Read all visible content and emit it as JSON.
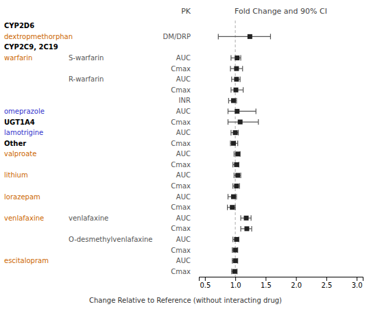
{
  "chart_data": {
    "type": "forest",
    "orientation": "horizontal",
    "title": "Fold Change and 90% CI",
    "xlabel": "Change Relative to Reference (without interacting drug)",
    "xlim": [
      0.4,
      3.1
    ],
    "xticks": [
      0.5,
      {
        "value": 1.0,
        "label": "1.0"
      },
      1.5,
      {
        "value": 2.0,
        "label": "2.0"
      },
      2.5,
      {
        "value": 3.0,
        "label": "3.0"
      }
    ],
    "grid": false,
    "annotations": [
      {
        "type": "text",
        "text": "PK"
      },
      {
        "type": "vline",
        "x": 1.0,
        "line_style": "dashed",
        "color": "#aaaaaa"
      }
    ],
    "categories": [
      "CYP2D6",
      "dextropmethorphan",
      "CYP2C9, 2C19",
      "warfarin",
      null,
      null,
      null,
      null,
      "omeprazole",
      "UGT1A4",
      "lamotrigine",
      "Other",
      "valproate",
      null,
      "lithium",
      null,
      "lorazepam",
      null,
      "venlafaxine",
      null,
      null,
      null,
      "escitalopram",
      null
    ],
    "bold": [
      true,
      false,
      true,
      false,
      false,
      false,
      false,
      false,
      false,
      true,
      false,
      true,
      false,
      false,
      false,
      false,
      false,
      false,
      false,
      false,
      false,
      false,
      false,
      false
    ],
    "label_colors": [
      "#000000",
      "#cc6600",
      "#000000",
      "#cc6600",
      null,
      null,
      null,
      null,
      "#3333cc",
      "#000000",
      "#3333cc",
      "#000000",
      "#cc6600",
      null,
      "#cc6600",
      null,
      "#cc6600",
      null,
      "#cc6600",
      null,
      null,
      null,
      "#cc6600",
      null
    ],
    "sublabels": [
      null,
      null,
      null,
      "S-warfarin",
      null,
      "R-warfarin",
      null,
      null,
      null,
      null,
      null,
      null,
      null,
      null,
      null,
      null,
      null,
      null,
      "venlafaxine",
      null,
      "O-desmethylvenlafaxine",
      null,
      null,
      null
    ],
    "pk_labels": [
      null,
      "DM/DRP",
      null,
      "AUC",
      "Cmax",
      "AUC",
      "Cmax",
      "INR",
      "AUC",
      "Cmax",
      "AUC",
      "Cmax",
      "AUC",
      "Cmax",
      "AUC",
      "Cmax",
      "AUC",
      "Cmax",
      "AUC",
      "Cmax",
      "AUC",
      "Cmax",
      "AUC",
      "Cmax"
    ],
    "values": [
      null,
      1.24,
      null,
      1.03,
      1.02,
      1.02,
      1.01,
      0.97,
      1.03,
      1.08,
      1.0,
      0.97,
      1.04,
      1.02,
      1.04,
      1.02,
      0.97,
      0.95,
      1.18,
      1.19,
      1.02,
      1.0,
      1.0,
      0.99
    ],
    "ci_lo": [
      null,
      0.72,
      null,
      0.93,
      0.92,
      0.94,
      0.93,
      0.89,
      0.88,
      0.88,
      0.93,
      0.92,
      0.98,
      0.96,
      0.98,
      0.96,
      0.88,
      0.87,
      1.09,
      1.09,
      0.96,
      0.95,
      0.95,
      0.94
    ],
    "ci_hi": [
      null,
      1.58,
      null,
      1.09,
      1.12,
      1.08,
      1.13,
      1.02,
      1.34,
      1.38,
      1.05,
      1.04,
      1.08,
      1.06,
      1.09,
      1.07,
      1.02,
      1.0,
      1.26,
      1.27,
      1.06,
      1.04,
      1.04,
      1.03
    ]
  }
}
